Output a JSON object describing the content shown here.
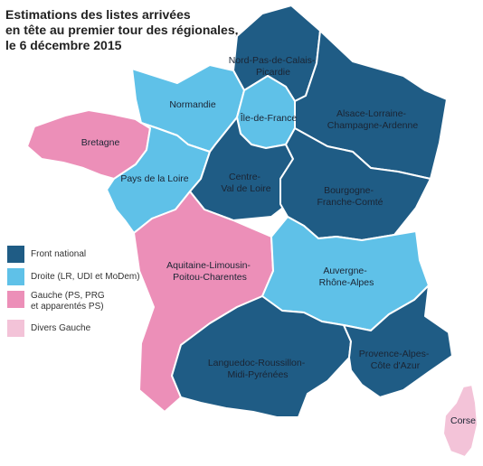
{
  "title": {
    "line1": "Estimations des listes arrivées",
    "line2": "en tête au premier tour des régionales,",
    "line3": "le 6 décembre 2015"
  },
  "colors": {
    "front_national": "#1f5c85",
    "droite": "#5fc1e8",
    "gauche": "#ec8fb8",
    "divers_gauche": "#f3c3d8"
  },
  "legend": [
    {
      "label": "Front national",
      "color": "#1f5c85"
    },
    {
      "label": "Droite (LR, UDI et MoDem)",
      "color": "#5fc1e8"
    },
    {
      "label_lines": [
        "Gauche (PS, PRG",
        "et apparentés PS)"
      ],
      "color": "#ec8fb8"
    },
    {
      "label": "Divers Gauche",
      "color": "#f3c3d8"
    }
  ],
  "regions": {
    "nord": {
      "lines": [
        "Nord-Pas-de-Calais-",
        "Picardie"
      ],
      "party": "front_national"
    },
    "normandie": {
      "lines": [
        "Normandie"
      ],
      "party": "droite"
    },
    "idf": {
      "lines": [
        "Île-de-France"
      ],
      "party": "droite"
    },
    "alsace": {
      "lines": [
        "Alsace-Lorraine-",
        "Champagne-Ardenne"
      ],
      "party": "front_national"
    },
    "bretagne": {
      "lines": [
        "Bretagne"
      ],
      "party": "gauche"
    },
    "pdl": {
      "lines": [
        "Pays de la Loire"
      ],
      "party": "droite"
    },
    "centre": {
      "lines": [
        "Centre-",
        "Val de Loire"
      ],
      "party": "front_national"
    },
    "bourgogne": {
      "lines": [
        "Bourgogne-",
        "Franche-Comté"
      ],
      "party": "front_national"
    },
    "aquitaine": {
      "lines": [
        "Aquitaine-Limousin-",
        "Poitou-Charentes"
      ],
      "party": "gauche"
    },
    "auvergne": {
      "lines": [
        "Auvergne-",
        "Rhône-Alpes"
      ],
      "party": "droite"
    },
    "languedoc": {
      "lines": [
        "Languedoc-Roussillon-",
        "Midi-Pyrénées"
      ],
      "party": "front_national"
    },
    "paca": {
      "lines": [
        "Provence-Alpes-",
        "Côte d'Azur"
      ],
      "party": "front_national"
    },
    "corse": {
      "lines": [
        "Corse"
      ],
      "party": "divers_gauche"
    }
  }
}
